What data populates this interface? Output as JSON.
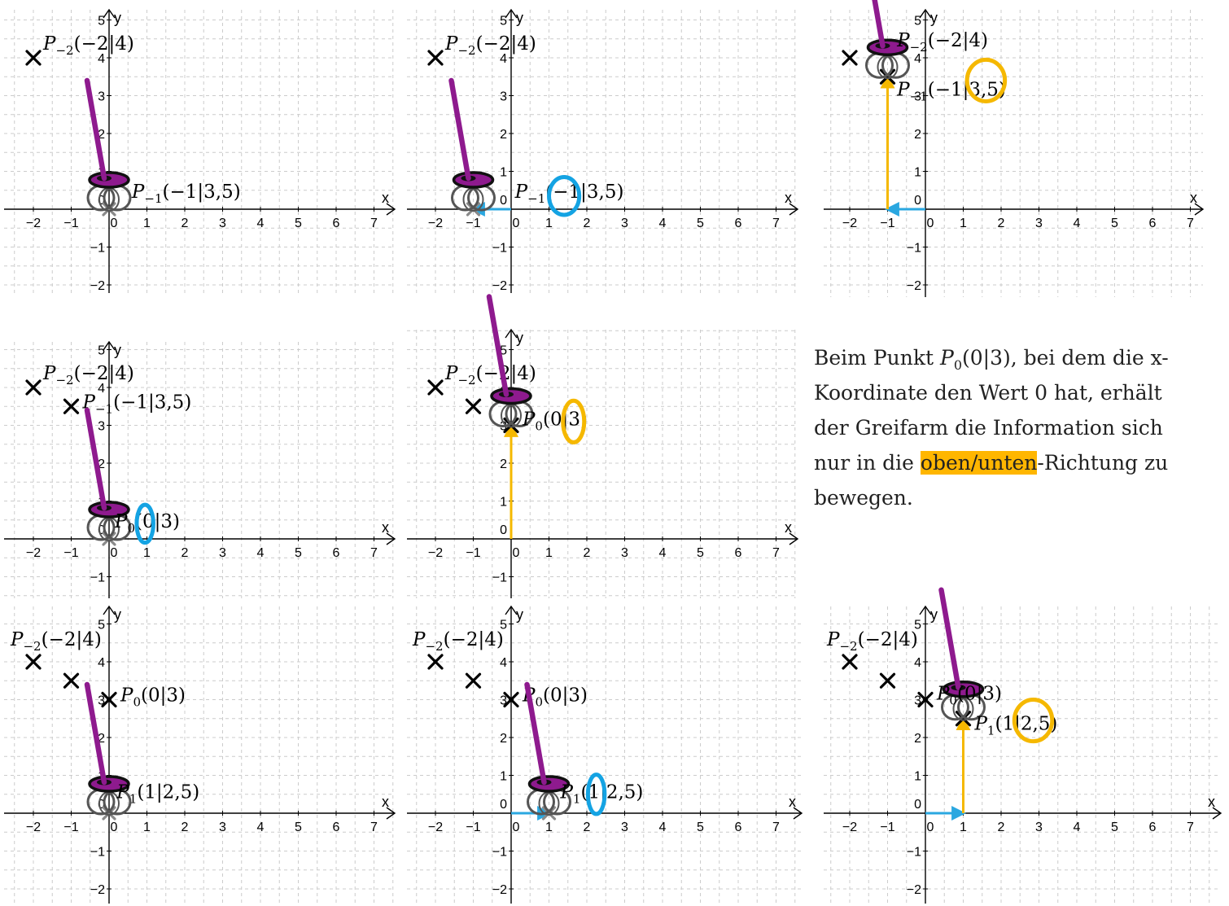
{
  "axis": {
    "x_label": "x",
    "y_label": "y"
  },
  "colors": {
    "cross": "#000000",
    "ghost_cross": "#8a8a8a",
    "grid": "#cccccc",
    "axis": "#000000",
    "arm": "#8e1a8e",
    "claw_top": "#8e1a8e",
    "claw_rim": "#111111",
    "claw_body": "#555555",
    "move_x": "#2aa7e0",
    "move_y": "#f5b800",
    "circle_x": "#14a3e3",
    "circle_y": "#f5b800"
  },
  "panels": [
    {
      "id": "p1",
      "xlim": [
        -2.6,
        7.6
      ],
      "ylim": [
        -2.4,
        5.5
      ],
      "points": [
        {
          "x": -2,
          "y": 4,
          "label": "P_{-2}(-2|4)",
          "label_pos": "above-right"
        }
      ],
      "ghost": [
        {
          "x": 0,
          "y": 0
        }
      ],
      "claw": {
        "x": 0,
        "y": 0,
        "state": "low"
      },
      "labels": [
        {
          "text": "P_{-1}(-1|3,5)",
          "anchor": [
            0.6,
            0.3
          ]
        }
      ],
      "arrows": [],
      "circles": []
    },
    {
      "id": "p2",
      "xlim": [
        -2.6,
        7.6
      ],
      "ylim": [
        -2.4,
        5.5
      ],
      "points": [
        {
          "x": -2,
          "y": 4,
          "label": "P_{-2}(-2|4)",
          "label_pos": "above-right"
        }
      ],
      "ghost": [
        {
          "x": -1,
          "y": 0
        }
      ],
      "claw": {
        "x": -1,
        "y": 0,
        "state": "low"
      },
      "labels": [
        {
          "text": "P_{-1}(-1|3,5)",
          "anchor": [
            0.1,
            0.3
          ]
        }
      ],
      "arrows": [
        {
          "from": [
            0,
            0
          ],
          "to": [
            -1,
            0
          ],
          "color": "move_x"
        }
      ],
      "circles": [
        {
          "x": 1.4,
          "y": 0.35,
          "rx": 0.4,
          "ry": 0.5,
          "color": "circle_x"
        }
      ]
    },
    {
      "id": "p3",
      "xlim": [
        -2.6,
        7.6
      ],
      "ylim": [
        -2.4,
        5.5
      ],
      "points": [
        {
          "x": -2,
          "y": 4,
          "label": "",
          "label_pos": "none"
        },
        {
          "x": -1,
          "y": 3.5,
          "label": "",
          "label_pos": "none"
        }
      ],
      "ghost": [],
      "claw": {
        "x": -1,
        "y": 3.5,
        "state": "high"
      },
      "labels": [
        {
          "text": "P_{-2}(-2|4)",
          "anchor": [
            -0.75,
            4.3
          ]
        },
        {
          "text": "P_{-1}(-1|3,5)",
          "anchor": [
            -0.75,
            3.0
          ]
        }
      ],
      "arrows": [
        {
          "from": [
            0,
            0
          ],
          "to": [
            -1,
            0
          ],
          "color": "move_x"
        },
        {
          "from": [
            -1,
            0
          ],
          "to": [
            -1,
            3.5
          ],
          "color": "move_y"
        }
      ],
      "circles": [
        {
          "x": 1.6,
          "y": 3.4,
          "rx": 0.5,
          "ry": 0.55,
          "color": "circle_y"
        }
      ]
    },
    {
      "id": "p4",
      "xlim": [
        -2.6,
        7.6
      ],
      "ylim": [
        -1.4,
        5.5
      ],
      "points": [
        {
          "x": -2,
          "y": 4,
          "label": "P_{-2}(-2|4)",
          "label_pos": "above-right"
        },
        {
          "x": -1,
          "y": 3.5,
          "label": "P_{-1}(-1|3,5)",
          "label_pos": "right"
        }
      ],
      "ghost": [
        {
          "x": 0,
          "y": 0
        }
      ],
      "claw": {
        "x": 0,
        "y": 0,
        "state": "low"
      },
      "labels": [
        {
          "text": "P_0(0|3)",
          "anchor": [
            0.15,
            0.3
          ]
        }
      ],
      "arrows": [],
      "circles": [
        {
          "x": 0.95,
          "y": 0.4,
          "rx": 0.22,
          "ry": 0.5,
          "color": "circle_x"
        }
      ]
    },
    {
      "id": "p5",
      "xlim": [
        -2.6,
        7.6
      ],
      "ylim": [
        -1.4,
        5.5
      ],
      "points": [
        {
          "x": -2,
          "y": 4,
          "label": "P_{-2}(-2|4)",
          "label_pos": "above-right"
        },
        {
          "x": -1,
          "y": 3.5,
          "label": "",
          "label_pos": "none"
        },
        {
          "x": 0,
          "y": 3,
          "label": "",
          "label_pos": "none"
        }
      ],
      "ghost": [],
      "claw": {
        "x": 0,
        "y": 3,
        "state": "high"
      },
      "labels": [
        {
          "text": "P_0(0|3)",
          "anchor": [
            0.3,
            3.0
          ]
        }
      ],
      "arrows": [
        {
          "from": [
            0,
            0
          ],
          "to": [
            0,
            3
          ],
          "color": "move_y"
        }
      ],
      "circles": [
        {
          "x": 1.65,
          "y": 3.1,
          "rx": 0.28,
          "ry": 0.55,
          "color": "circle_y"
        }
      ]
    },
    {
      "id": "p7",
      "xlim": [
        -2.6,
        7.6
      ],
      "ylim": [
        -2.4,
        5.5
      ],
      "points": [
        {
          "x": -2,
          "y": 4,
          "label": "P_{-2}(-2|4)",
          "label_pos": "above-left"
        },
        {
          "x": -1,
          "y": 3.5,
          "label": "",
          "label_pos": "none"
        },
        {
          "x": 0,
          "y": 3,
          "label": "P_0(0|3)",
          "label_pos": "right"
        }
      ],
      "ghost": [
        {
          "x": 0,
          "y": 0
        }
      ],
      "claw": {
        "x": 0,
        "y": 0,
        "state": "low"
      },
      "labels": [
        {
          "text": "P_1(1|2,5)",
          "anchor": [
            0.2,
            0.4
          ]
        }
      ],
      "arrows": [],
      "circles": []
    },
    {
      "id": "p8",
      "xlim": [
        -2.6,
        7.6
      ],
      "ylim": [
        -2.4,
        5.5
      ],
      "points": [
        {
          "x": -2,
          "y": 4,
          "label": "P_{-2}(-2|4)",
          "label_pos": "above-left"
        },
        {
          "x": -1,
          "y": 3.5,
          "label": "",
          "label_pos": "none"
        },
        {
          "x": 0,
          "y": 3,
          "label": "P_0(0|3)",
          "label_pos": "right"
        }
      ],
      "ghost": [
        {
          "x": 1,
          "y": 0
        }
      ],
      "claw": {
        "x": 1,
        "y": 0,
        "state": "low"
      },
      "labels": [
        {
          "text": "P_1(1|2,5)",
          "anchor": [
            1.3,
            0.4
          ]
        }
      ],
      "arrows": [
        {
          "from": [
            0,
            0
          ],
          "to": [
            1,
            0
          ],
          "color": "move_x"
        }
      ],
      "circles": [
        {
          "x": 2.25,
          "y": 0.5,
          "rx": 0.22,
          "ry": 0.52,
          "color": "circle_x"
        }
      ]
    },
    {
      "id": "p9",
      "xlim": [
        -2.6,
        7.6
      ],
      "ylim": [
        -2.4,
        5.5
      ],
      "points": [
        {
          "x": -2,
          "y": 4,
          "label": "P_{-2}(-2|4)",
          "label_pos": "above-left"
        },
        {
          "x": -1,
          "y": 3.5,
          "label": "",
          "label_pos": "none"
        },
        {
          "x": 0,
          "y": 3,
          "label": "",
          "label_pos": "none"
        },
        {
          "x": 1,
          "y": 2.5,
          "label": "",
          "label_pos": "none"
        }
      ],
      "ghost": [],
      "claw": {
        "x": 1,
        "y": 2.5,
        "state": "high"
      },
      "labels": [
        {
          "text": "P_0(0|3)",
          "anchor": [
            0.3,
            3.0
          ]
        },
        {
          "text": "P_1(1|2,5)",
          "anchor": [
            1.3,
            2.2
          ]
        }
      ],
      "arrows": [
        {
          "from": [
            0,
            0
          ],
          "to": [
            1,
            0
          ],
          "color": "move_x"
        },
        {
          "from": [
            1,
            0
          ],
          "to": [
            1,
            2.5
          ],
          "color": "move_y"
        }
      ],
      "circles": [
        {
          "x": 2.85,
          "y": 2.45,
          "rx": 0.5,
          "ry": 0.55,
          "color": "circle_y"
        }
      ]
    }
  ],
  "explanation": {
    "t1": "Beim Punkt ",
    "t2": "P",
    "t3": "0",
    "t4": "(0|3), bei dem die x-Koordinate den Wert 0 hat, erhält der Greifarm die Information sich nur in die ",
    "highlight": "oben/unten",
    "t5": "-Richtung zu bewegen."
  }
}
